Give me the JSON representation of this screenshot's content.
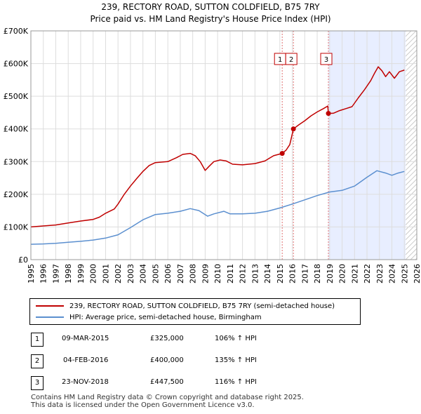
{
  "title_line1": "239, RECTORY ROAD, SUTTON COLDFIELD, B75 7RY",
  "title_line2": "Price paid vs. HM Land Registry's House Price Index (HPI)",
  "colors": {
    "property": "#c00000",
    "hpi": "#5b8fcf",
    "shade": "#e8eeff",
    "grid": "#dddddd",
    "marker_line": "#e07070"
  },
  "legend": {
    "property_label": "239, RECTORY ROAD, SUTTON COLDFIELD, B75 7RY (semi-detached house)",
    "hpi_label": "HPI: Average price, semi-detached house, Birmingham"
  },
  "transactions": [
    {
      "num": "1",
      "date": "09-MAR-2015",
      "price": "£325,000",
      "hpi": "106% ↑ HPI"
    },
    {
      "num": "2",
      "date": "04-FEB-2016",
      "price": "£400,000",
      "hpi": "135% ↑ HPI"
    },
    {
      "num": "3",
      "date": "23-NOV-2018",
      "price": "£447,500",
      "hpi": "116% ↑ HPI"
    }
  ],
  "footer_line1": "Contains HM Land Registry data © Crown copyright and database right 2025.",
  "footer_line2": "This data is licensed under the Open Government Licence v3.0.",
  "chart_data": {
    "type": "line",
    "title": "239, RECTORY ROAD, SUTTON COLDFIELD, B75 7RY",
    "subtitle": "Price paid vs. HM Land Registry's House Price Index (HPI)",
    "xlim": [
      1995,
      2026
    ],
    "ylim": [
      0,
      700000
    ],
    "x_ticks": [
      1995,
      1996,
      1997,
      1998,
      1999,
      2000,
      2001,
      2002,
      2003,
      2004,
      2005,
      2006,
      2007,
      2008,
      2009,
      2010,
      2011,
      2012,
      2013,
      2014,
      2015,
      2016,
      2017,
      2018,
      2019,
      2020,
      2021,
      2022,
      2023,
      2024,
      2025,
      2026
    ],
    "y_ticks": [
      0,
      100000,
      200000,
      300000,
      400000,
      500000,
      600000,
      700000
    ],
    "y_tick_labels": [
      "£0",
      "£100K",
      "£200K",
      "£300K",
      "£400K",
      "£500K",
      "£600K",
      "£700K"
    ],
    "grid": true,
    "shaded_region": [
      2018.9,
      2025.1
    ],
    "hatched_after": 2025.1,
    "markers": [
      {
        "label": "1",
        "x": 2015.19,
        "y": 325000
      },
      {
        "label": "2",
        "x": 2016.09,
        "y": 400000
      },
      {
        "label": "3",
        "x": 2018.9,
        "y": 447500
      }
    ],
    "series": [
      {
        "name": "239, RECTORY ROAD, SUTTON COLDFIELD, B75 7RY (semi-detached house)",
        "x": [
          1995,
          1996,
          1997,
          1998,
          1999,
          2000,
          2000.5,
          2001,
          2001.7,
          2002,
          2002.5,
          2003,
          2003.5,
          2004,
          2004.5,
          2005,
          2006,
          2006.7,
          2007.2,
          2007.8,
          2008.2,
          2008.6,
          2009,
          2009.3,
          2009.7,
          2010.2,
          2010.7,
          2011.2,
          2012,
          2013,
          2013.8,
          2014.5,
          2015.19,
          2015.5,
          2015.8,
          2016.09,
          2016.5,
          2017,
          2017.5,
          2018,
          2018.5,
          2018.85,
          2018.9,
          2019.3,
          2019.8,
          2020.3,
          2020.8,
          2021.3,
          2021.8,
          2022.3,
          2022.6,
          2022.9,
          2023.2,
          2023.5,
          2023.8,
          2024.2,
          2024.6,
          2025
        ],
        "y": [
          100000,
          103000,
          106000,
          112000,
          118000,
          123000,
          130000,
          142000,
          155000,
          170000,
          200000,
          225000,
          248000,
          270000,
          288000,
          297000,
          300000,
          312000,
          322000,
          325000,
          318000,
          300000,
          273000,
          285000,
          300000,
          305000,
          302000,
          292000,
          290000,
          294000,
          302000,
          318000,
          325000,
          335000,
          352000,
          400000,
          412000,
          425000,
          440000,
          452000,
          462000,
          470000,
          447500,
          448000,
          456000,
          462000,
          468000,
          495000,
          520000,
          548000,
          570000,
          590000,
          578000,
          560000,
          575000,
          555000,
          575000,
          580000
        ]
      },
      {
        "name": "HPI: Average price, semi-detached house, Birmingham",
        "x": [
          1995,
          1996,
          1997,
          1998,
          1999,
          2000,
          2001,
          2002,
          2003,
          2004,
          2005,
          2006,
          2007,
          2007.8,
          2008.5,
          2009.2,
          2009.7,
          2010.5,
          2011,
          2012,
          2013,
          2014,
          2015,
          2016,
          2017,
          2018,
          2019,
          2020,
          2021,
          2022,
          2022.8,
          2023.5,
          2024,
          2024.5,
          2025
        ],
        "y": [
          47000,
          48000,
          50000,
          53000,
          56000,
          60000,
          66000,
          76000,
          98000,
          122000,
          138000,
          142000,
          148000,
          156000,
          150000,
          133000,
          140000,
          148000,
          140000,
          140000,
          142000,
          148000,
          158000,
          170000,
          183000,
          196000,
          207000,
          212000,
          225000,
          252000,
          272000,
          265000,
          258000,
          265000,
          270000
        ]
      }
    ]
  }
}
